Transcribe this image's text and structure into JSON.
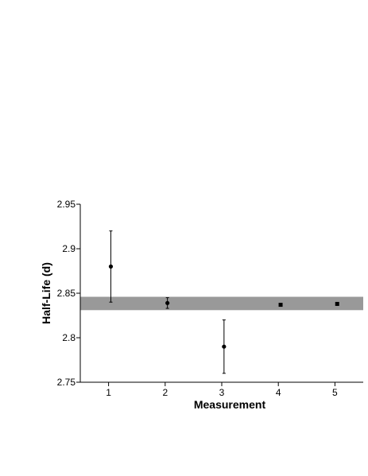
{
  "chart_data": {
    "type": "scatter",
    "title": "",
    "xlabel": "Measurement",
    "ylabel": "Half-Life (d)",
    "xlim": [
      0.5,
      5.5
    ],
    "ylim": [
      2.75,
      2.95
    ],
    "x_ticks": [
      "1",
      "2",
      "3",
      "4",
      "5"
    ],
    "y_ticks": [
      "2.75",
      "2.8",
      "2.85",
      "2.9",
      "2.95"
    ],
    "grid": false,
    "legend": "none",
    "band": {
      "y_low": 2.831,
      "y_high": 2.846,
      "color": "#999999"
    },
    "series": [
      {
        "marker": "circle",
        "color": "#000000",
        "points": [
          {
            "x": 1,
            "y": 2.88,
            "err": 0.04
          },
          {
            "x": 2,
            "y": 2.839,
            "err": 0.006
          },
          {
            "x": 3,
            "y": 2.79,
            "err": 0.03
          }
        ]
      },
      {
        "marker": "square",
        "color": "#000000",
        "points": [
          {
            "x": 4,
            "y": 2.837,
            "err": 0
          },
          {
            "x": 5,
            "y": 2.838,
            "err": 0
          }
        ]
      }
    ]
  }
}
